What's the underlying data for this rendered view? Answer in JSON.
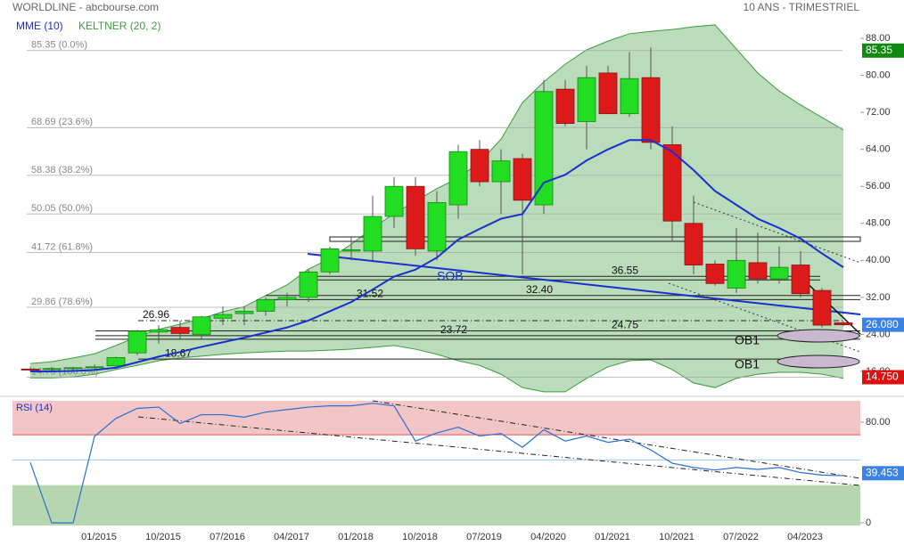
{
  "chart_data": [
    {
      "type": "candlestick",
      "title": "WORLDLINE - abcbourse.com",
      "subtitle": "10 ANS - TRIMESTRIEL",
      "categories": [
        null,
        null,
        null,
        "01/2015",
        null,
        null,
        "10/2015",
        null,
        null,
        "07/2016",
        null,
        null,
        "04/2017",
        null,
        null,
        "01/2018",
        null,
        null,
        "10/2018",
        null,
        null,
        "07/2019",
        null,
        null,
        "04/2020",
        null,
        null,
        "01/2021",
        null,
        null,
        "10/2021",
        null,
        null,
        "07/2022",
        null,
        null,
        "04/2023",
        null,
        null
      ],
      "open": [
        16.5,
        16.4,
        16.6,
        16.8,
        17.2,
        20,
        24.5,
        25.5,
        24,
        27.5,
        28.5,
        29,
        31.5,
        32,
        37.5,
        42,
        42,
        49.5,
        56,
        42,
        52,
        64,
        57,
        62,
        52,
        77,
        70,
        80.5,
        71.7,
        79.5,
        65,
        48,
        39.2,
        34,
        39.5,
        36,
        39,
        33.5,
        26.5
      ],
      "high": [
        17,
        17,
        17,
        17.5,
        19.2,
        25,
        26,
        27,
        28,
        30,
        30,
        32,
        33,
        38,
        43,
        45,
        54,
        58,
        58,
        55,
        65,
        66,
        64,
        63,
        79,
        79,
        82,
        82,
        85,
        86,
        69,
        54,
        40,
        47,
        46,
        43,
        42,
        34,
        27
      ],
      "low": [
        16,
        16,
        16.2,
        16.5,
        16.8,
        19.5,
        22,
        23,
        23,
        26,
        26,
        28,
        30,
        31,
        37,
        40,
        40,
        47,
        41,
        40,
        49,
        56,
        50,
        37,
        50,
        69,
        64,
        72,
        71,
        64,
        44,
        37,
        34.5,
        33,
        35,
        35,
        32,
        25.5,
        25.8
      ],
      "close": [
        16.3,
        16.6,
        16.8,
        17,
        19,
        24.7,
        25,
        24.2,
        27.8,
        28.3,
        29,
        31.5,
        32,
        37.5,
        42.5,
        42.3,
        49.5,
        56,
        42.5,
        52.5,
        63.5,
        57,
        61.5,
        53,
        76.5,
        69.6,
        79.5,
        71.7,
        79.3,
        65.5,
        48.5,
        39,
        35,
        40,
        36,
        38.5,
        32.8,
        26,
        26.08
      ],
      "up_color": "#22dd22",
      "down_color": "#dd1a1a",
      "series": [
        {
          "name": "MME (10)",
          "color": "#1a2fd0",
          "values": [
            16,
            16,
            16.1,
            16.3,
            16.8,
            18,
            19.2,
            20.2,
            21.3,
            22.3,
            23.3,
            24.4,
            25.5,
            27,
            29,
            31,
            33.7,
            36.5,
            38,
            40.6,
            44.5,
            46.8,
            49,
            50,
            56.8,
            58.5,
            61.6,
            64,
            66,
            66,
            63.5,
            59.5,
            55,
            52,
            49,
            47,
            44.7,
            41.5,
            38.5
          ]
        },
        {
          "name": "KELTNER (20, 2)",
          "color": "#3f9a3f",
          "upper": [
            17.7,
            18.1,
            18.9,
            19.8,
            21.6,
            23.5,
            25.1,
            26.2,
            27.4,
            28.9,
            30,
            32.4,
            34.7,
            38.1,
            40.4,
            43.5,
            47,
            50.1,
            52.8,
            55.5,
            57.8,
            61.2,
            66.2,
            74.1,
            78.6,
            82.4,
            85.5,
            87.4,
            89,
            89.5,
            89.9,
            90.5,
            90.9,
            85.7,
            80.5,
            76.6,
            73.6,
            70.9,
            68.2
          ],
          "lower": [
            14.6,
            14.6,
            14.8,
            15.4,
            16.4,
            17.3,
            18.3,
            18.9,
            19.3,
            19.7,
            20,
            20.2,
            20.4,
            20.4,
            20.6,
            20.8,
            21.2,
            21.6,
            20.8,
            19.7,
            18.3,
            17.3,
            15.4,
            12.5,
            11.6,
            11.6,
            14.5,
            17,
            18.3,
            18.5,
            16.4,
            13.5,
            12.5,
            14.5,
            15.4,
            15.8,
            15.8,
            15.4,
            14.5
          ]
        }
      ],
      "fib_levels": [
        {
          "value": 85.35,
          "label": "85.35 (0.0%)"
        },
        {
          "value": 68.69,
          "label": "68.69 (23.6%)"
        },
        {
          "value": 58.38,
          "label": "58.38 (38.2%)"
        },
        {
          "value": 50.05,
          "label": "50.05 (50.0%)"
        },
        {
          "value": 41.72,
          "label": "41.72 (61.8%)"
        },
        {
          "value": 29.86,
          "label": "29.86 (78.6%)"
        },
        {
          "value": 14.75,
          "label": "14.75 (100.0%)"
        }
      ],
      "levels": [
        26.96,
        18.67,
        31.52,
        {
          "value": 32.4,
          "label": "32.40"
        },
        36.55,
        23.72,
        24.75
      ],
      "annotations": [
        "SOB",
        "OB1",
        "OB1"
      ],
      "tags": [
        {
          "value": 85.35,
          "color": "#118811"
        },
        {
          "value": 26.08,
          "label": "26.080",
          "color": "#3b82e6"
        },
        {
          "value": 14.75,
          "label": "14.750",
          "color": "#dd1111"
        }
      ],
      "ylim": [
        11.57,
        96.28
      ],
      "yticks": [
        {
          "value": 88,
          "label": "88.00"
        },
        {
          "value": 80,
          "label": "80.00"
        },
        {
          "value": 72,
          "label": "72.00"
        },
        {
          "value": 64,
          "label": "64.00"
        },
        {
          "value": 56,
          "label": "56.00"
        },
        {
          "value": 48,
          "label": "48.00"
        },
        {
          "value": 40,
          "label": "40.00"
        },
        {
          "value": 32,
          "label": "32.00"
        },
        {
          "value": 24,
          "label": "24.00"
        },
        {
          "value": 16,
          "label": "16.00"
        }
      ]
    },
    {
      "type": "line",
      "title": "RSI (14)",
      "color": "#2a6fd6",
      "values": [
        48,
        0,
        0,
        68.7,
        83,
        91,
        92,
        79,
        86,
        86,
        84,
        88,
        90,
        92,
        93,
        93,
        95,
        93,
        65,
        71.5,
        76,
        69,
        71,
        60,
        74,
        65,
        69,
        64,
        66.5,
        58,
        47.4,
        44,
        42,
        44,
        42.5,
        44,
        40,
        38,
        37.5
      ],
      "overbought": 70,
      "midline": 50,
      "oversold": 30,
      "tags": [
        {
          "value": 39.453,
          "color": "#3b82e6"
        }
      ],
      "ylim": [
        -2.1,
        97
      ],
      "yticks": [
        {
          "value": 80,
          "label": "80.00"
        },
        0
      ]
    }
  ]
}
